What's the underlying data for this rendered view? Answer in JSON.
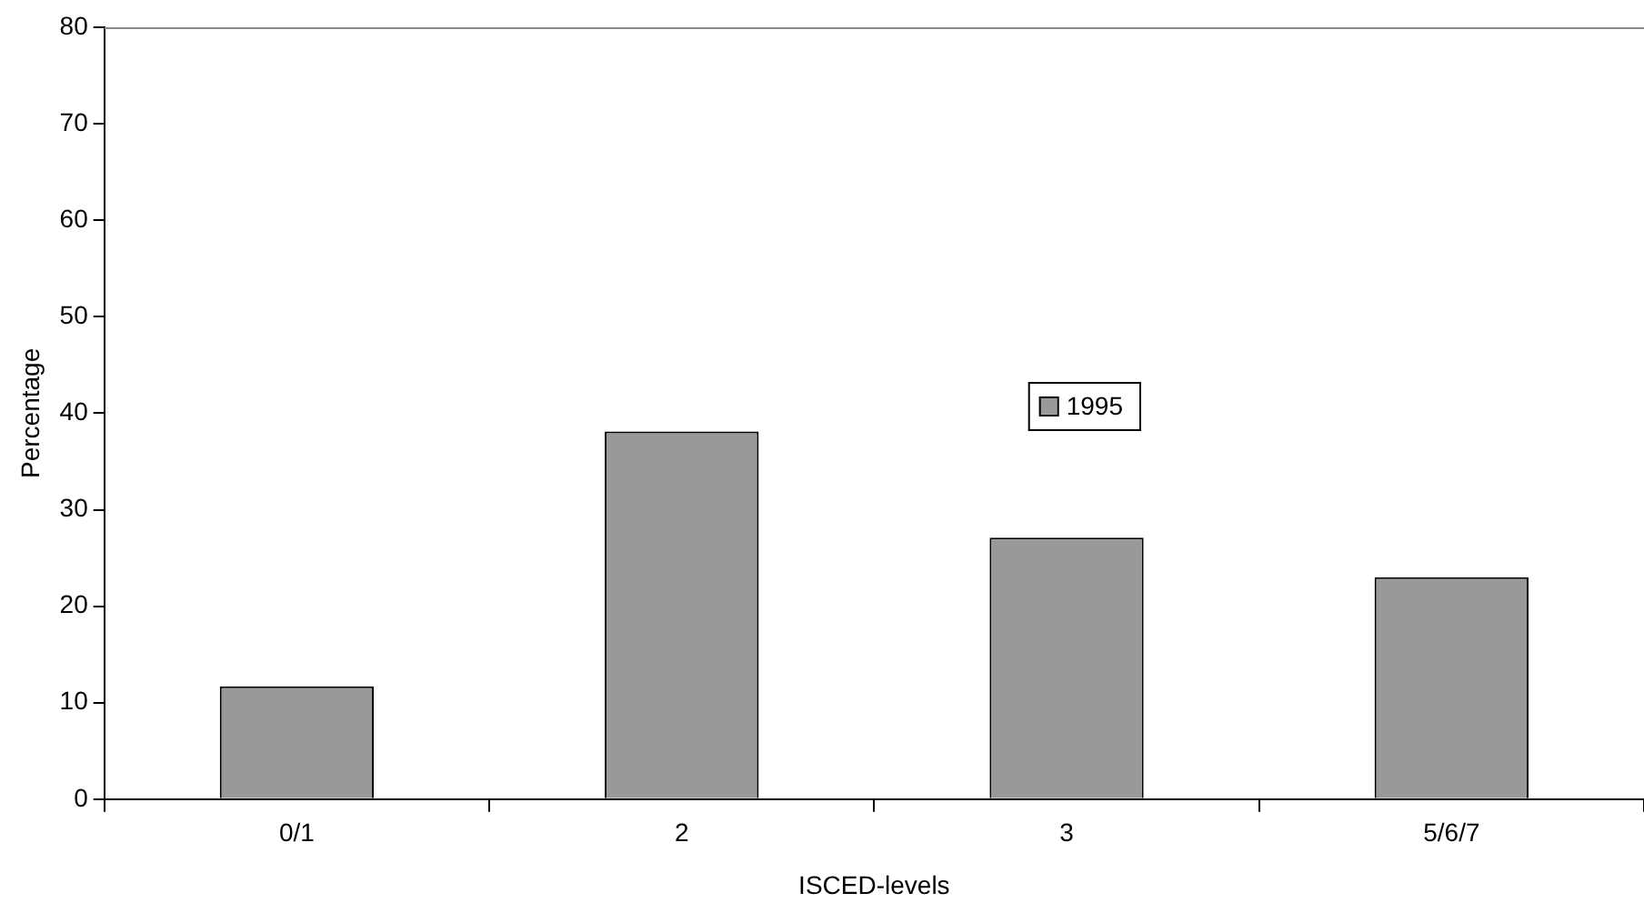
{
  "chart_data": {
    "type": "bar",
    "xlabel": "ISCED-levels",
    "ylabel": "Percentage",
    "categories": [
      "0/1",
      "2",
      "3",
      "5/6/7"
    ],
    "series": [
      {
        "name": "1995",
        "color": "#999999",
        "values": [
          11.7,
          38.1,
          27.1,
          23.0
        ]
      }
    ],
    "ylim": [
      0,
      80
    ],
    "yticks": [
      0,
      10,
      20,
      30,
      40,
      50,
      60,
      70,
      80
    ],
    "grid": false,
    "legend": "center right"
  }
}
